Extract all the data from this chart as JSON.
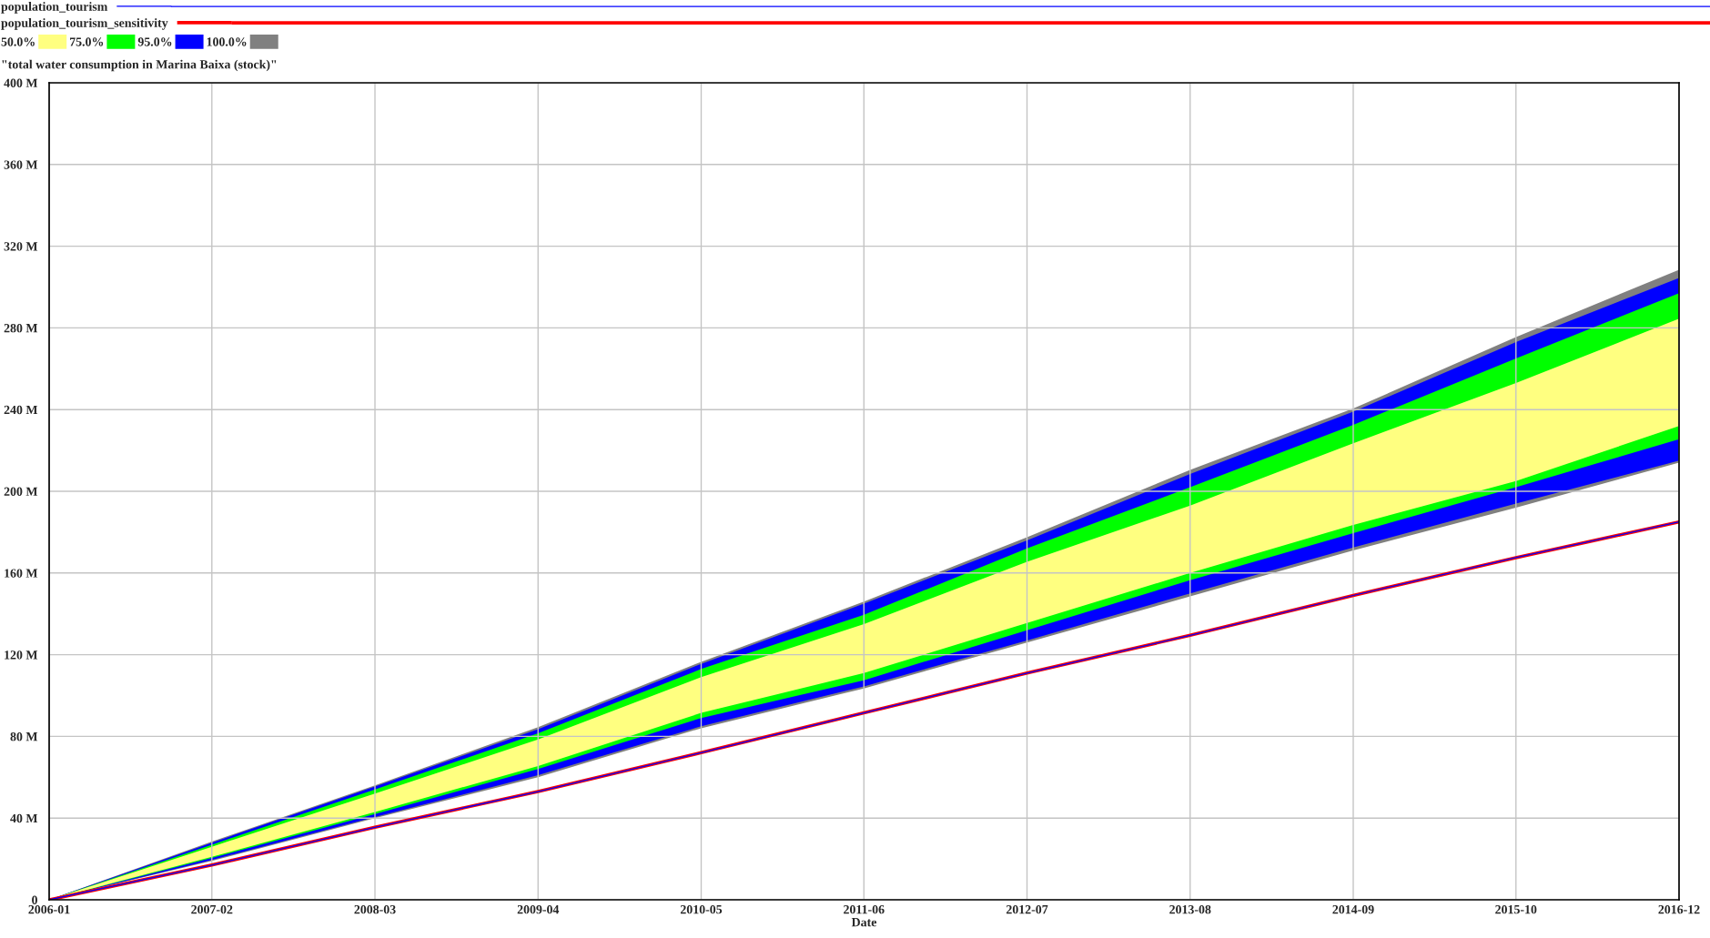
{
  "chart_data": {
    "type": "line",
    "title": "\"total water consumption in Marina Baixa (stock)\"",
    "xlabel": "Date",
    "x": [
      "2006-01-01",
      "2007-02-03",
      "2008-03-08",
      "2009-04-11",
      "2010-05-15",
      "2011-06-17",
      "2012-07-20",
      "2013-08-23",
      "2014-09-26",
      "2015-10-29",
      "2016-12-01"
    ],
    "series": [
      {
        "name": "population_tourism",
        "color": "#0000ff",
        "values": [
          0,
          17,
          35.5,
          53,
          72,
          91.5,
          111,
          129.5,
          149,
          167.5,
          185
        ]
      },
      {
        "name": "population_tourism_sensitivity",
        "color": "#ff0000",
        "values": [
          0,
          17,
          35.5,
          53,
          72,
          91.5,
          111,
          129.5,
          149,
          167.5,
          185
        ]
      },
      {
        "name": "50.0%",
        "type": "area",
        "color": "#ffff80",
        "values": [
          null,
          null,
          null,
          null,
          null,
          null,
          null,
          null,
          null,
          null,
          null
        ],
        "lower": [
          0,
          21,
          43,
          65.5,
          91.5,
          111,
          135.5,
          160,
          183.5,
          205,
          232
        ],
        "upper": [
          0,
          26,
          52,
          78.5,
          109,
          135,
          165.5,
          193,
          223.5,
          253,
          284.5
        ]
      },
      {
        "name": "75.0%",
        "type": "area",
        "color": "#00ff00",
        "values": [
          null,
          null,
          null,
          null,
          null,
          null,
          null,
          null,
          null,
          null,
          null
        ],
        "lower": [
          0,
          20.5,
          42,
          64,
          89,
          107.5,
          132,
          156.5,
          179.5,
          202,
          225.5
        ],
        "upper": [
          0,
          27,
          54,
          81.5,
          113,
          139.5,
          172,
          202,
          232.5,
          265,
          297
        ]
      },
      {
        "name": "95.0%",
        "type": "area",
        "color": "#0000ff",
        "values": [
          null,
          null,
          null,
          null,
          null,
          null,
          null,
          null,
          null,
          null,
          null
        ],
        "lower": [
          0,
          19.5,
          40.5,
          61,
          85,
          104.5,
          127,
          150,
          172.5,
          194,
          215
        ],
        "upper": [
          0,
          28,
          55.5,
          83.5,
          115.5,
          145,
          176,
          208.5,
          239,
          273,
          304.5
        ]
      },
      {
        "name": "100.0%",
        "type": "area",
        "color": "#808080",
        "values": [
          null,
          null,
          null,
          null,
          null,
          null,
          null,
          null,
          null,
          null,
          null
        ],
        "lower": [
          0,
          19,
          40,
          60,
          84,
          103.5,
          126,
          148.5,
          171,
          192,
          214
        ],
        "upper": [
          0,
          28.5,
          56,
          84.5,
          116.5,
          146,
          177.5,
          210.5,
          240.5,
          275.5,
          308.5
        ]
      }
    ],
    "xlim": [
      "2006-01-01",
      "2016-12-01"
    ],
    "xticks": [
      {
        "value": "2006-01-01",
        "label": "2006-01"
      },
      {
        "value": "2007-02-03",
        "label": "2007-02"
      },
      {
        "value": "2008-03-08",
        "label": "2008-03"
      },
      {
        "value": "2009-04-11",
        "label": "2009-04"
      },
      {
        "value": "2010-05-15",
        "label": "2010-05"
      },
      {
        "value": "2011-06-17",
        "label": "2011-06"
      },
      {
        "value": "2012-07-20",
        "label": "2012-07"
      },
      {
        "value": "2013-08-23",
        "label": "2013-08"
      },
      {
        "value": "2014-09-26",
        "label": "2014-09"
      },
      {
        "value": "2015-10-29",
        "label": "2015-10"
      },
      {
        "value": "2016-12-01",
        "label": "2016-12"
      }
    ],
    "ylim": [
      0,
      400
    ],
    "yticks": [
      0,
      {
        "value": 40,
        "label": "40 M"
      },
      {
        "value": 80,
        "label": "80 M"
      },
      {
        "value": 120,
        "label": "120 M"
      },
      {
        "value": 160,
        "label": "160 M"
      },
      {
        "value": 200,
        "label": "200 M"
      },
      {
        "value": 240,
        "label": "240 M"
      },
      {
        "value": 280,
        "label": "280 M"
      },
      {
        "value": 320,
        "label": "320 M"
      },
      {
        "value": 360,
        "label": "360 M"
      },
      {
        "value": 400,
        "label": "400 M"
      }
    ],
    "grid": true,
    "legend": "top"
  }
}
